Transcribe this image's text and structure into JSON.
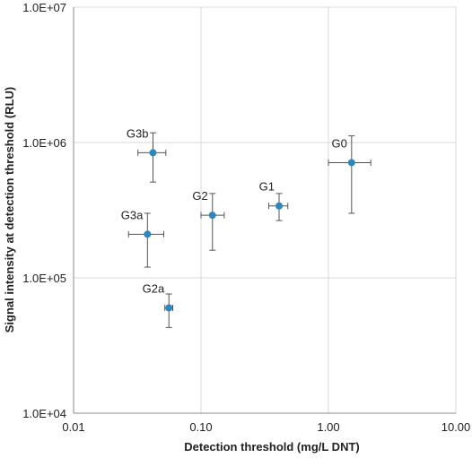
{
  "chart_data": {
    "type": "scatter",
    "xscale": "log",
    "yscale": "log",
    "xlim": [
      0.01,
      10
    ],
    "ylim": [
      10000,
      10000000
    ],
    "grid": true,
    "xlabel": "Detection threshold (mg/L DNT)",
    "ylabel": "Signal intensity at detection threshold (RLU)",
    "x_ticks": [
      0.01,
      0.1,
      1,
      10
    ],
    "x_tick_labels": [
      "0.01",
      "0.10",
      "1.00",
      "10.00"
    ],
    "y_ticks": [
      10000,
      100000,
      1000000,
      10000000
    ],
    "y_tick_labels": [
      "1.0E+04",
      "1.0E+05",
      "1.0E+06",
      "1.0E+07"
    ],
    "colors": {
      "marker": "#2e86c1",
      "errorbar": "#555555",
      "grid": "#d9d9d9",
      "axis": "#8c8c8c"
    },
    "points": [
      {
        "label": "G3b",
        "x": 0.042,
        "y": 840000,
        "x_err": [
          0.032,
          0.053
        ],
        "y_err": [
          510000,
          1180000
        ]
      },
      {
        "label": "G0",
        "x": 1.52,
        "y": 710000,
        "x_err": [
          1.0,
          2.15
        ],
        "y_err": [
          300000,
          1120000
        ]
      },
      {
        "label": "G2",
        "x": 0.123,
        "y": 290000,
        "x_err": [
          0.1,
          0.152
        ],
        "y_err": [
          160000,
          420000
        ]
      },
      {
        "label": "G1",
        "x": 0.41,
        "y": 340000,
        "x_err": [
          0.34,
          0.48
        ],
        "y_err": [
          265000,
          420000
        ]
      },
      {
        "label": "G3a",
        "x": 0.038,
        "y": 210000,
        "x_err": [
          0.027,
          0.051
        ],
        "y_err": [
          120000,
          300000
        ]
      },
      {
        "label": "G2a",
        "x": 0.056,
        "y": 60000,
        "x_err": [
          0.052,
          0.06
        ],
        "y_err": [
          43000,
          76000
        ]
      }
    ]
  }
}
